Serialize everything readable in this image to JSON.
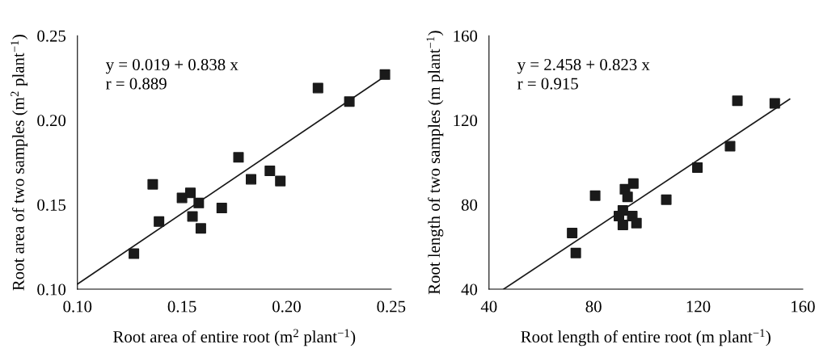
{
  "chart_data": [
    {
      "type": "scatter",
      "xlabel": "Root area of entire root (m$^{2}$ plant$^{−1}$)",
      "ylabel": "Root area of two samples (m$^{2}$ plant$^{−1}$)",
      "xlim": [
        0.1,
        0.25
      ],
      "ylim": [
        0.1,
        0.25
      ],
      "xticks": [
        {
          "value": 0.1,
          "label": "0.10"
        },
        {
          "value": 0.15,
          "label": "0.15"
        },
        {
          "value": 0.2,
          "label": "0.20"
        },
        {
          "value": 0.25,
          "label": "0.25"
        }
      ],
      "yticks": [
        {
          "value": 0.1,
          "label": "0.10"
        },
        {
          "value": 0.15,
          "label": "0.15"
        },
        {
          "value": 0.2,
          "label": "0.20"
        },
        {
          "value": 0.25,
          "label": "0.25"
        }
      ],
      "marker": "square",
      "grid": false,
      "legend": false,
      "annotations": [
        "y = 0.019 + 0.838 x",
        "r = 0.889"
      ],
      "series": [
        {
          "color": "#1a1a1a",
          "x": [
            0.127,
            0.136,
            0.139,
            0.15,
            0.154,
            0.155,
            0.158,
            0.159,
            0.169,
            0.177,
            0.183,
            0.192,
            0.197,
            0.215,
            0.23,
            0.247
          ],
          "values": [
            0.121,
            0.162,
            0.14,
            0.154,
            0.157,
            0.143,
            0.151,
            0.136,
            0.148,
            0.178,
            0.165,
            0.17,
            0.164,
            0.219,
            0.211,
            0.227
          ]
        },
        {
          "type": "line",
          "marker": "none",
          "color": "#1a1a1a",
          "x": [
            0.1,
            0.247
          ],
          "values": [
            0.103,
            0.226
          ]
        }
      ]
    },
    {
      "type": "scatter",
      "xlabel": "Root length of entire root (m plant$^{−1}$)",
      "ylabel": "Root length of two samples (m plant$^{−1}$)",
      "xlim": [
        40,
        160
      ],
      "ylim": [
        40,
        160
      ],
      "xticks": [
        40,
        80,
        120,
        160
      ],
      "yticks": [
        40,
        80,
        120,
        160
      ],
      "marker": "square",
      "grid": false,
      "legend": false,
      "annotations": [
        "y = 2.458 + 0.823 x",
        "r = 0.915"
      ],
      "series": [
        {
          "color": "#1a1a1a",
          "x": [
            71.8,
            73.2,
            80.6,
            89.7,
            91.2,
            91.2,
            92.0,
            93.0,
            95.2,
            94.8,
            96.4,
            107.8,
            119.7,
            132.2,
            135.0,
            149.3
          ],
          "values": [
            66.6,
            57.1,
            84.3,
            74.6,
            77.3,
            70.4,
            87.3,
            83.7,
            90.0,
            74.6,
            71.3,
            82.4,
            97.6,
            107.7,
            129.2,
            128.0
          ]
        },
        {
          "type": "line",
          "marker": "none",
          "color": "#1a1a1a",
          "x": [
            45.6,
            155
          ],
          "values": [
            40,
            130.0
          ]
        }
      ]
    }
  ]
}
